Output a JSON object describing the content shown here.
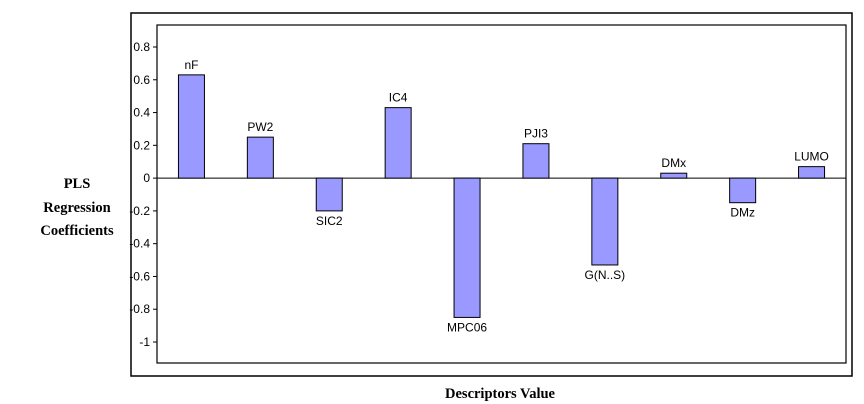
{
  "chart_data": {
    "type": "bar",
    "title": "",
    "xlabel": "Descriptors Value",
    "ylabel_lines": [
      "PLS",
      "Regression",
      "Coefficients"
    ],
    "categories": [
      "nF",
      "PW2",
      "SIC2",
      "IC4",
      "MPC06",
      "PJI3",
      "G(N..S)",
      "DMx",
      "DMz",
      "LUMO"
    ],
    "values": [
      0.63,
      0.25,
      -0.2,
      0.43,
      -0.85,
      0.21,
      -0.53,
      0.03,
      -0.15,
      0.07
    ],
    "ylim": [
      -1,
      0.8
    ],
    "yticks": [
      "0.8",
      "0.6",
      "0.4",
      "0.2",
      "0",
      "-0.2",
      "-0.4",
      "-0.6",
      "-0.8",
      "-1"
    ],
    "grid": false,
    "legend": "none",
    "bar_color": "#9999ff",
    "bar_edge_color": "#000000"
  }
}
